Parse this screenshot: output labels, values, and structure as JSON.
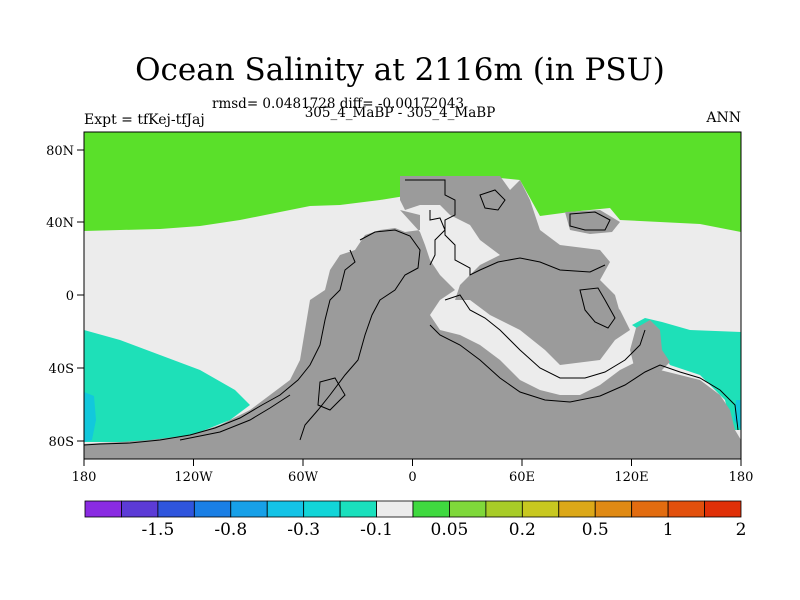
{
  "title": "Ocean Salinity at 2116m (in PSU)",
  "stats_line": "rmsd= 0.0481728 diff= -0.00172043",
  "comparison_line": "305_4_MaBP - 305_4_MaBP",
  "expt_label": "Expt = tfKej-tfJaj",
  "period_label": "ANN",
  "map": {
    "projection": "cylindrical-equidistant",
    "lon_range": [
      -180,
      180
    ],
    "lat_range": [
      -90,
      90
    ],
    "x_ticks": [
      "180",
      "120W",
      "60W",
      "0",
      "60E",
      "120E",
      "180"
    ],
    "y_ticks": [
      "80N",
      "40N",
      "0",
      "40S",
      "80S"
    ],
    "land_color": "#9b9b9b",
    "coastline_color": "#000000"
  },
  "colorbar": {
    "colors": [
      "#8a2be2",
      "#5c3bd6",
      "#2f55dd",
      "#1a7fe5",
      "#17a0e8",
      "#14c3e6",
      "#12d5d8",
      "#1ae0bd",
      "#ececec",
      "#3fd93f",
      "#7fd83a",
      "#a8cc28",
      "#c8c820",
      "#dca818",
      "#e08a14",
      "#e26c10",
      "#e2500d",
      "#e03008"
    ],
    "labels": [
      "-1.5",
      "-0.8",
      "-0.3",
      "-0.1",
      "0.05",
      "0.2",
      "0.5",
      "1",
      "2"
    ]
  },
  "fields": {
    "neutral_color": "#ececec",
    "north_high_color": "#5ae02a",
    "south_low_color": "#1ee0b8",
    "south_deep_low_color": "#12c8dc"
  }
}
